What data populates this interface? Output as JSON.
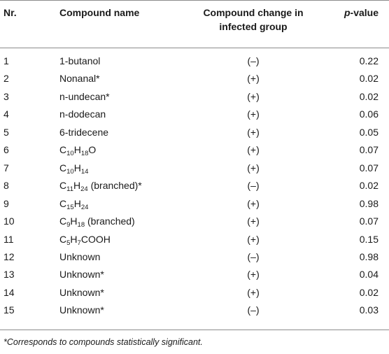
{
  "headers": {
    "nr": "Nr.",
    "compound_name": "Compound name",
    "change_line1": "Compound change in",
    "change_line2": "infected group",
    "p_italic": "p",
    "p_rest": "-value"
  },
  "rows": [
    {
      "nr": "1",
      "name": "1-butanol",
      "change": "(–)",
      "p": "0.22"
    },
    {
      "nr": "2",
      "name": "Nonanal*",
      "change": "(+)",
      "p": "0.02"
    },
    {
      "nr": "3",
      "name": "n-undecan*",
      "change": "(+)",
      "p": "0.02"
    },
    {
      "nr": "4",
      "name": "n-dodecan",
      "change": "(+)",
      "p": "0.06"
    },
    {
      "nr": "5",
      "name": "6-tridecene",
      "change": "(+)",
      "p": "0.05"
    },
    {
      "nr": "6",
      "name_parts": [
        "C",
        "10",
        "H",
        "18",
        "O"
      ],
      "change": "(+)",
      "p": "0.07"
    },
    {
      "nr": "7",
      "name_parts": [
        "C",
        "10",
        "H",
        "14"
      ],
      "change": "(+)",
      "p": "0.07"
    },
    {
      "nr": "8",
      "name_parts": [
        "C",
        "11",
        "H",
        "24",
        " (branched)*"
      ],
      "change": "(–)",
      "p": "0.02"
    },
    {
      "nr": "9",
      "name_parts": [
        "C",
        "15",
        "H",
        "24"
      ],
      "change": "(+)",
      "p": "0.98"
    },
    {
      "nr": "10",
      "name_parts": [
        "C",
        "9",
        "H",
        "18",
        " (branched)"
      ],
      "change": "(+)",
      "p": "0.07"
    },
    {
      "nr": "11",
      "name_parts": [
        "C",
        "5",
        "H",
        "7",
        "COOH"
      ],
      "change": "(+)",
      "p": "0.15"
    },
    {
      "nr": "12",
      "name": "Unknown",
      "change": "(–)",
      "p": "0.98"
    },
    {
      "nr": "13",
      "name": "Unknown*",
      "change": "(+)",
      "p": "0.04"
    },
    {
      "nr": "14",
      "name": "Unknown*",
      "change": "(+)",
      "p": "0.02"
    },
    {
      "nr": "15",
      "name": "Unknown*",
      "change": "(–)",
      "p": "0.03"
    }
  ],
  "footnote": "*Corresponds to compounds statistically significant."
}
